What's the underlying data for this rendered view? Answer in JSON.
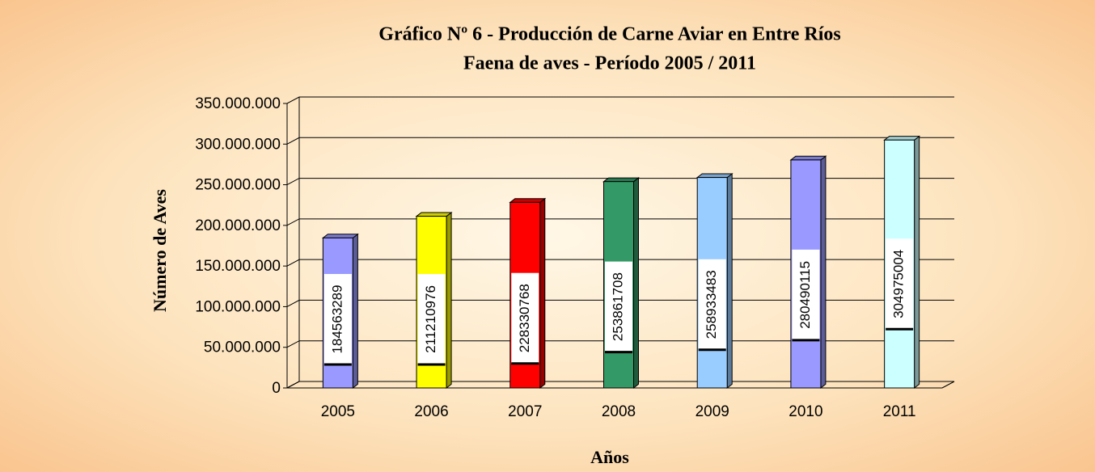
{
  "chart_data": {
    "type": "bar",
    "title": "Gráfico Nº 6 - Producción de Carne Aviar en Entre Ríos",
    "subtitle": "Faena de aves - Período 2005 / 2011",
    "x_label": "Años",
    "y_label": "Número de Aves",
    "categories": [
      "2005",
      "2006",
      "2007",
      "2008",
      "2009",
      "2010",
      "2011"
    ],
    "values": [
      184563289,
      211210976,
      228330768,
      253861708,
      258933483,
      280490115,
      304975004
    ],
    "colors": [
      "#9999ff",
      "#ffff00",
      "#ff0000",
      "#339966",
      "#99ccff",
      "#9999ff",
      "#ccffff"
    ],
    "ylim": [
      0,
      350000000
    ],
    "yticks": [
      0,
      {
        "value": 50000000,
        "label": "50.000.000"
      },
      {
        "value": 100000000,
        "label": "100.000.000"
      },
      {
        "value": 150000000,
        "label": "150.000.000"
      },
      {
        "value": 200000000,
        "label": "200.000.000"
      },
      {
        "value": 250000000,
        "label": "250.000.000"
      },
      {
        "value": 300000000,
        "label": "300.000.000"
      },
      {
        "value": 350000000,
        "label": "350.000.000"
      }
    ],
    "grid": true
  }
}
